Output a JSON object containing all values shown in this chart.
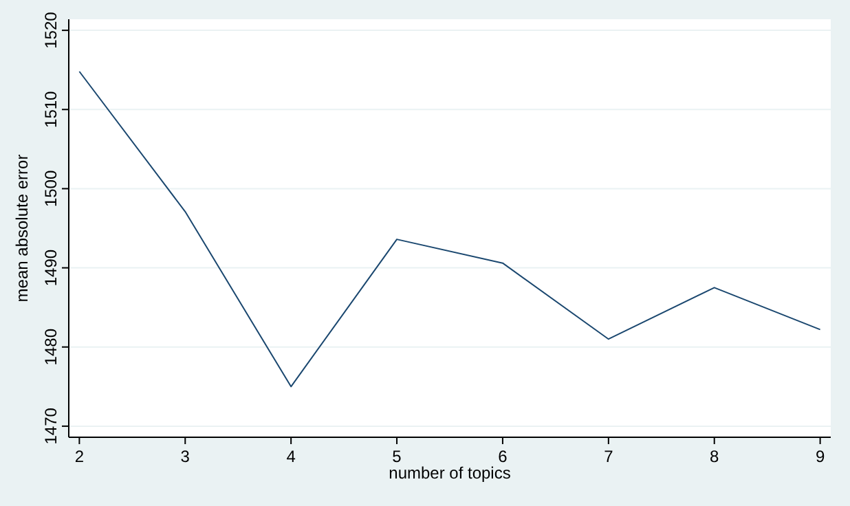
{
  "chart_data": {
    "type": "line",
    "xlabel": "number of topics",
    "ylabel": "mean absolute error",
    "x": [
      2,
      3,
      4,
      5,
      6,
      7,
      8,
      9
    ],
    "series": [
      {
        "color": "#1a476f",
        "values": [
          1514.8,
          1497.1,
          1475.0,
          1493.6,
          1490.6,
          1481.0,
          1487.5,
          1482.2
        ]
      }
    ],
    "xlim": [
      1.9,
      9.1
    ],
    "xticks": [
      2,
      3,
      4,
      5,
      6,
      7,
      8,
      9
    ],
    "ylim": [
      1468.6,
      1521.4
    ],
    "yticks": [
      1470,
      1480,
      1490,
      1500,
      1510,
      1520
    ],
    "grid": "y",
    "marker": "none",
    "line_style": "solid"
  }
}
